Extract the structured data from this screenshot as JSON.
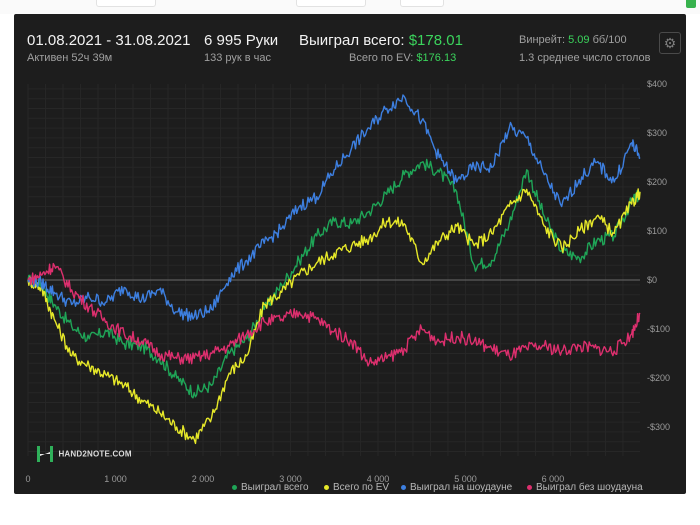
{
  "header": {
    "date_range": "01.08.2021 - 31.08.2021",
    "active": "Активен 52ч 39м",
    "hands_value": "6 995 Руки",
    "hands_rate": "133 рук в час",
    "won_total_label": "Выиграл всего:",
    "won_total_value": "$178.01",
    "ev_label": "Всего по EV:",
    "ev_value": "$176.13",
    "winrate_label": "Винрейт:",
    "winrate_value": "5.09",
    "winrate_unit": "бб/100",
    "tables_avg": "1.3 среднее число столов",
    "settings_icon": "gear-icon"
  },
  "logo_text": "HAND2NOTE.COM",
  "colors": {
    "panel_bg": "#1d1d1d",
    "won_total": "#1fa557",
    "ev": "#e6e829",
    "showdown": "#3d7fe0",
    "no_showdown": "#dd2f6e",
    "accent_green": "#3bd45c"
  },
  "chart_data": {
    "type": "line",
    "xlim": [
      0,
      6995
    ],
    "ylim": [
      -360,
      410
    ],
    "x_ticks": [
      0,
      1000,
      2000,
      3000,
      4000,
      5000,
      6000
    ],
    "x_tick_labels": [
      "0",
      "1 000",
      "2 000",
      "3 000",
      "4 000",
      "5 000",
      "6 000"
    ],
    "y_ticks": [
      400,
      300,
      200,
      100,
      0,
      -100,
      -200,
      -300
    ],
    "y_tick_labels": [
      "$400",
      "$300",
      "$200",
      "$100",
      "$0",
      "-$100",
      "-$200",
      "-$300"
    ],
    "grid": true,
    "legend_position": "bottom-right",
    "x": [
      0,
      150,
      300,
      500,
      700,
      900,
      1100,
      1300,
      1500,
      1700,
      1900,
      2100,
      2300,
      2500,
      2700,
      2900,
      3100,
      3300,
      3500,
      3700,
      3900,
      4100,
      4300,
      4500,
      4700,
      4900,
      5100,
      5300,
      5500,
      5700,
      5900,
      6100,
      6300,
      6500,
      6700,
      6900,
      6995
    ],
    "series": [
      {
        "name": "Выиграл всего",
        "color": "#1fa557",
        "values": [
          0,
          -10,
          -50,
          -95,
          -120,
          -105,
          -130,
          -135,
          -160,
          -200,
          -230,
          -215,
          -150,
          -120,
          -60,
          -10,
          40,
          90,
          120,
          115,
          140,
          175,
          215,
          240,
          220,
          180,
          30,
          40,
          115,
          225,
          130,
          60,
          45,
          80,
          90,
          160,
          175
        ]
      },
      {
        "name": "Всего по EV",
        "color": "#e6e829",
        "values": [
          0,
          -15,
          -80,
          -155,
          -175,
          -195,
          -215,
          -245,
          -270,
          -300,
          -325,
          -280,
          -190,
          -155,
          -50,
          -25,
          10,
          35,
          55,
          70,
          85,
          120,
          115,
          35,
          80,
          110,
          70,
          95,
          150,
          185,
          110,
          65,
          100,
          130,
          95,
          155,
          180
        ]
      },
      {
        "name": "Выиграл на шоудауне",
        "color": "#3d7fe0",
        "values": [
          0,
          -5,
          -25,
          -50,
          -35,
          -45,
          -15,
          -40,
          -20,
          -65,
          -75,
          -60,
          5,
          40,
          75,
          105,
          150,
          170,
          225,
          270,
          310,
          350,
          375,
          325,
          250,
          200,
          230,
          230,
          310,
          290,
          215,
          150,
          205,
          240,
          200,
          280,
          250
        ]
      },
      {
        "name": "Выиграл без шоудауна",
        "color": "#dd2f6e",
        "values": [
          0,
          10,
          30,
          -20,
          -55,
          -85,
          -110,
          -125,
          -150,
          -160,
          -160,
          -150,
          -135,
          -110,
          -85,
          -80,
          -65,
          -80,
          -105,
          -125,
          -170,
          -160,
          -140,
          -100,
          -125,
          -115,
          -125,
          -140,
          -155,
          -140,
          -135,
          -145,
          -135,
          -140,
          -145,
          -110,
          -70
        ]
      }
    ]
  }
}
